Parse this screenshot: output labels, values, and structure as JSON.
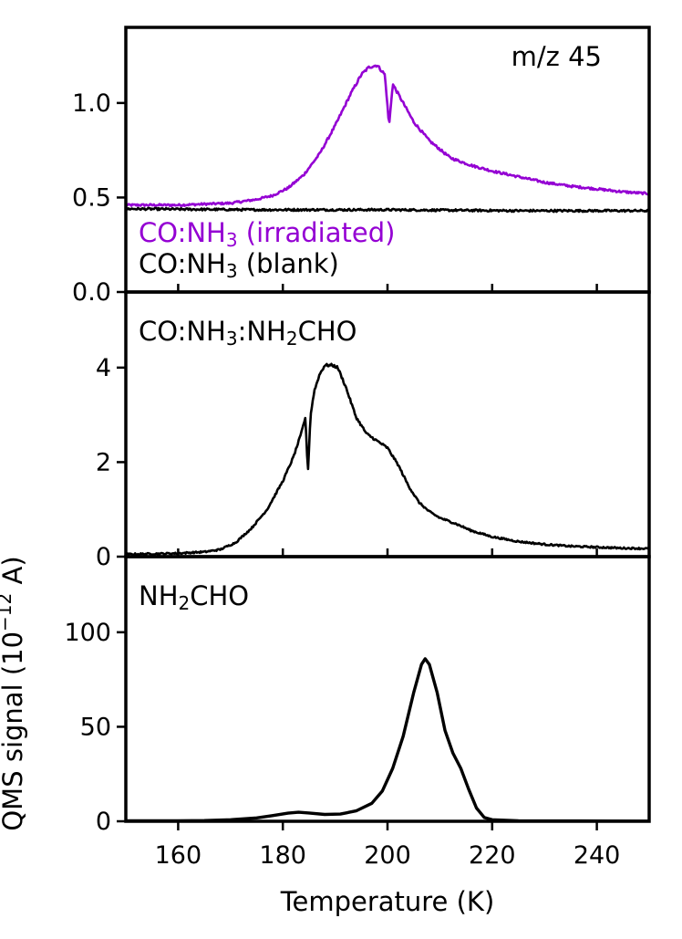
{
  "chart_data": {
    "type": "line",
    "layout": "three vertically stacked panels sharing the x axis",
    "xlabel": "Temperature (K)",
    "ylabel_text": "QMS signal (10",
    "ylabel_exp": "−12",
    "ylabel_unit": " A)",
    "xlim": [
      150,
      250
    ],
    "xticks": [
      160,
      180,
      200,
      220,
      240
    ],
    "panels": [
      {
        "annotation": "m/z 45",
        "ylim": [
          0.0,
          1.4
        ],
        "yticks": [
          0.0,
          0.5,
          1.0
        ],
        "ytick_labels": [
          "0.0",
          "0.5",
          "1.0"
        ],
        "legend_placement": "bottom-left",
        "series": [
          {
            "name": "CO:NH₃ (irradiated)",
            "name_parts": [
              "CO:NH",
              "3",
              " (irradiated)"
            ],
            "color": "#9400d3",
            "noisy": true,
            "points": [
              [
                150,
                0.46
              ],
              [
                155,
                0.46
              ],
              [
                160,
                0.46
              ],
              [
                165,
                0.465
              ],
              [
                170,
                0.47
              ],
              [
                175,
                0.49
              ],
              [
                178,
                0.51
              ],
              [
                181,
                0.55
              ],
              [
                184,
                0.62
              ],
              [
                187,
                0.73
              ],
              [
                190,
                0.88
              ],
              [
                193,
                1.05
              ],
              [
                195,
                1.15
              ],
              [
                196.5,
                1.19
              ],
              [
                198,
                1.2
              ],
              [
                199.5,
                1.15
              ],
              [
                200.3,
                0.88
              ],
              [
                201,
                1.1
              ],
              [
                203,
                1.0
              ],
              [
                205,
                0.9
              ],
              [
                208,
                0.8
              ],
              [
                212,
                0.71
              ],
              [
                216,
                0.67
              ],
              [
                220,
                0.64
              ],
              [
                225,
                0.61
              ],
              [
                230,
                0.58
              ],
              [
                235,
                0.56
              ],
              [
                240,
                0.545
              ],
              [
                245,
                0.53
              ],
              [
                250,
                0.52
              ]
            ]
          },
          {
            "name": "CO:NH₃ (blank)",
            "name_parts": [
              "CO:NH",
              "3",
              " (blank)"
            ],
            "color": "#000000",
            "noisy": true,
            "points": [
              [
                150,
                0.44
              ],
              [
                175,
                0.435
              ],
              [
                200,
                0.435
              ],
              [
                225,
                0.43
              ],
              [
                250,
                0.43
              ]
            ]
          }
        ]
      },
      {
        "annotation": "CO:NH₃:NH₂CHO",
        "annotation_parts": [
          "CO:NH",
          "3",
          ":NH",
          "2",
          "CHO"
        ],
        "ylim": [
          0,
          5.6
        ],
        "yticks": [
          0,
          2,
          4
        ],
        "ytick_labels": [
          "0",
          "2",
          "4"
        ],
        "series": [
          {
            "name": "CO:NH₃:NH₂CHO",
            "color": "#000000",
            "noisy": true,
            "points": [
              [
                150,
                0.05
              ],
              [
                155,
                0.06
              ],
              [
                160,
                0.07
              ],
              [
                165,
                0.1
              ],
              [
                168,
                0.15
              ],
              [
                171,
                0.3
              ],
              [
                174,
                0.6
              ],
              [
                177,
                1.0
              ],
              [
                180,
                1.6
              ],
              [
                182,
                2.1
              ],
              [
                183.5,
                2.6
              ],
              [
                184.3,
                2.95
              ],
              [
                184.8,
                1.8
              ],
              [
                185.3,
                3.0
              ],
              [
                186,
                3.5
              ],
              [
                187,
                3.85
              ],
              [
                188,
                4.05
              ],
              [
                189.5,
                4.05
              ],
              [
                190.5,
                4.0
              ],
              [
                192,
                3.6
              ],
              [
                194,
                2.95
              ],
              [
                196,
                2.6
              ],
              [
                198,
                2.45
              ],
              [
                200,
                2.3
              ],
              [
                202,
                1.95
              ],
              [
                204,
                1.5
              ],
              [
                206,
                1.15
              ],
              [
                208,
                0.95
              ],
              [
                210,
                0.82
              ],
              [
                213,
                0.7
              ],
              [
                216,
                0.55
              ],
              [
                220,
                0.42
              ],
              [
                225,
                0.32
              ],
              [
                230,
                0.26
              ],
              [
                235,
                0.22
              ],
              [
                240,
                0.2
              ],
              [
                245,
                0.18
              ],
              [
                250,
                0.17
              ]
            ]
          }
        ]
      },
      {
        "annotation": "NH₂CHO",
        "annotation_parts": [
          "NH",
          "2",
          "CHO"
        ],
        "ylim": [
          0,
          140
        ],
        "yticks": [
          0,
          50,
          100
        ],
        "ytick_labels": [
          "0",
          "50",
          "100"
        ],
        "series": [
          {
            "name": "NH₂CHO",
            "color": "#000000",
            "noisy": false,
            "points": [
              [
                150,
                0.3
              ],
              [
                160,
                0.3
              ],
              [
                165,
                0.4
              ],
              [
                170,
                0.8
              ],
              [
                175,
                1.8
              ],
              [
                178,
                3.0
              ],
              [
                181,
                4.3
              ],
              [
                183,
                4.8
              ],
              [
                185,
                4.4
              ],
              [
                188,
                3.6
              ],
              [
                191,
                3.8
              ],
              [
                194,
                5.5
              ],
              [
                197,
                9.5
              ],
              [
                199,
                16
              ],
              [
                201,
                28
              ],
              [
                203,
                45
              ],
              [
                205,
                68
              ],
              [
                206.5,
                83
              ],
              [
                207.2,
                86
              ],
              [
                208,
                83
              ],
              [
                209.5,
                68
              ],
              [
                211,
                48
              ],
              [
                212.5,
                36
              ],
              [
                214,
                28
              ],
              [
                215.5,
                17
              ],
              [
                217,
                7
              ],
              [
                218.5,
                2
              ],
              [
                220,
                0.8
              ],
              [
                225,
                0.3
              ],
              [
                250,
                0.1
              ]
            ]
          }
        ]
      }
    ]
  }
}
